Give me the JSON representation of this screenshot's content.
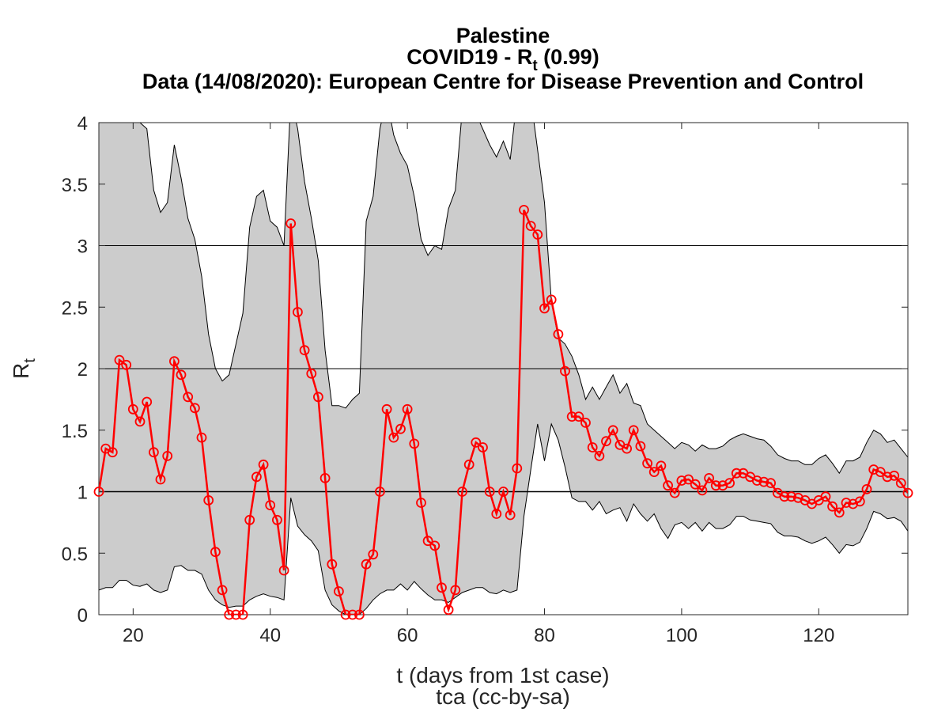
{
  "chart_data": {
    "type": "line",
    "title_lines": [
      "Palestine",
      "COVID19 - R",
      "Data (14/08/2020): European Centre for Disease Prevention and Control"
    ],
    "title_sub": "t",
    "title_suffix": " (0.99)",
    "xlabel": "t (days from 1st case)",
    "ylabel": "R",
    "ylabel_sub": "t",
    "credit": "tca (cc-by-sa)",
    "xlim": [
      15,
      133
    ],
    "ylim": [
      0,
      4
    ],
    "x_ticks": [
      20,
      40,
      60,
      80,
      100,
      120
    ],
    "y_ticks": [
      0,
      0.5,
      1,
      1.5,
      2,
      2.5,
      3,
      3.5,
      4
    ],
    "hlines": [
      1,
      2,
      3
    ],
    "x_start": 15,
    "series": [
      {
        "values": [
          1.0,
          1.35,
          1.32,
          2.07,
          2.03,
          1.67,
          1.57,
          1.73,
          1.32,
          1.1,
          1.29,
          2.06,
          1.95,
          1.77,
          1.68,
          1.44,
          0.93,
          0.51,
          0.2,
          0.0,
          0.0,
          0.0,
          0.77,
          1.12,
          1.22,
          0.89,
          0.77,
          0.36,
          3.18,
          2.46,
          2.15,
          1.96,
          1.77,
          1.11,
          0.41,
          0.19,
          0.0,
          0.0,
          0.0,
          0.41,
          0.49,
          1.0,
          1.67,
          1.44,
          1.51,
          1.67,
          1.39,
          0.91,
          0.6,
          0.56,
          0.22,
          0.04,
          0.2,
          1.0,
          1.22,
          1.4,
          1.36,
          1.0,
          0.82,
          1.0,
          0.81,
          1.19,
          3.29,
          3.16,
          3.09,
          2.49,
          2.56,
          2.28,
          1.98,
          1.61,
          1.61,
          1.56,
          1.36,
          1.29,
          1.41,
          1.5,
          1.38,
          1.35,
          1.5,
          1.37,
          1.23,
          1.16,
          1.21,
          1.05,
          0.99,
          1.09,
          1.1,
          1.06,
          1.01,
          1.11,
          1.05,
          1.05,
          1.07,
          1.15,
          1.15,
          1.12,
          1.09,
          1.08,
          1.07,
          0.99,
          0.96,
          0.96,
          0.95,
          0.93,
          0.9,
          0.93,
          0.96,
          0.88,
          0.83,
          0.91,
          0.9,
          0.92,
          1.02,
          1.18,
          1.16,
          1.12,
          1.13,
          1.07,
          0.99
        ]
      }
    ],
    "band_upper": [
      [
        15,
        4.2
      ],
      [
        17,
        4.2
      ],
      [
        18,
        4.1
      ],
      [
        21,
        4.0
      ],
      [
        22,
        3.95
      ],
      [
        23,
        3.45
      ],
      [
        24,
        3.27
      ],
      [
        25,
        3.35
      ],
      [
        26,
        3.82
      ],
      [
        27,
        3.55
      ],
      [
        28,
        3.22
      ],
      [
        29,
        3.05
      ],
      [
        30,
        2.75
      ],
      [
        31,
        2.28
      ],
      [
        32,
        2.0
      ],
      [
        33,
        1.9
      ],
      [
        34,
        1.95
      ],
      [
        35,
        2.2
      ],
      [
        36,
        2.45
      ],
      [
        37,
        3.15
      ],
      [
        38,
        3.4
      ],
      [
        39,
        3.45
      ],
      [
        40,
        3.2
      ],
      [
        41,
        3.15
      ],
      [
        42,
        3.0
      ],
      [
        43,
        4.2
      ],
      [
        44,
        3.95
      ],
      [
        45,
        3.52
      ],
      [
        46,
        3.22
      ],
      [
        47,
        2.88
      ],
      [
        48,
        2.15
      ],
      [
        49,
        1.7
      ],
      [
        50,
        1.7
      ],
      [
        51,
        1.68
      ],
      [
        52,
        1.75
      ],
      [
        53,
        1.8
      ],
      [
        54,
        3.2
      ],
      [
        55,
        3.4
      ],
      [
        56,
        3.95
      ],
      [
        57,
        4.2
      ],
      [
        58,
        3.9
      ],
      [
        59,
        3.75
      ],
      [
        60,
        3.65
      ],
      [
        61,
        3.4
      ],
      [
        62,
        3.05
      ],
      [
        63,
        2.92
      ],
      [
        64,
        3.0
      ],
      [
        65,
        2.97
      ],
      [
        66,
        3.3
      ],
      [
        67,
        3.45
      ],
      [
        68,
        4.1
      ],
      [
        69,
        4.2
      ],
      [
        72,
        3.82
      ],
      [
        73,
        3.72
      ],
      [
        74,
        3.85
      ],
      [
        75,
        3.7
      ],
      [
        76,
        4.2
      ],
      [
        78,
        4.2
      ],
      [
        80,
        3.35
      ],
      [
        81,
        2.55
      ],
      [
        82,
        2.25
      ],
      [
        83,
        2.2
      ],
      [
        84,
        2.1
      ],
      [
        85,
        1.95
      ],
      [
        86,
        1.75
      ],
      [
        87,
        1.85
      ],
      [
        88,
        1.75
      ],
      [
        89,
        1.85
      ],
      [
        90,
        1.95
      ],
      [
        91,
        1.8
      ],
      [
        92,
        1.88
      ],
      [
        93,
        1.72
      ],
      [
        94,
        1.7
      ],
      [
        95,
        1.55
      ],
      [
        96,
        1.5
      ],
      [
        97,
        1.45
      ],
      [
        98,
        1.4
      ],
      [
        99,
        1.35
      ],
      [
        100,
        1.4
      ],
      [
        101,
        1.38
      ],
      [
        102,
        1.33
      ],
      [
        103,
        1.38
      ],
      [
        104,
        1.35
      ],
      [
        105,
        1.35
      ],
      [
        106,
        1.37
      ],
      [
        107,
        1.42
      ],
      [
        108,
        1.45
      ],
      [
        109,
        1.47
      ],
      [
        110,
        1.45
      ],
      [
        111,
        1.43
      ],
      [
        112,
        1.42
      ],
      [
        113,
        1.37
      ],
      [
        114,
        1.3
      ],
      [
        115,
        1.27
      ],
      [
        116,
        1.25
      ],
      [
        117,
        1.25
      ],
      [
        118,
        1.22
      ],
      [
        119,
        1.22
      ],
      [
        120,
        1.27
      ],
      [
        121,
        1.3
      ],
      [
        122,
        1.23
      ],
      [
        123,
        1.15
      ],
      [
        124,
        1.25
      ],
      [
        125,
        1.25
      ],
      [
        126,
        1.28
      ],
      [
        127,
        1.4
      ],
      [
        128,
        1.5
      ],
      [
        129,
        1.47
      ],
      [
        130,
        1.4
      ],
      [
        131,
        1.42
      ],
      [
        132,
        1.35
      ],
      [
        133,
        1.28
      ]
    ],
    "band_lower": [
      [
        15,
        0.2
      ],
      [
        16,
        0.22
      ],
      [
        17,
        0.22
      ],
      [
        18,
        0.28
      ],
      [
        19,
        0.28
      ],
      [
        20,
        0.24
      ],
      [
        21,
        0.23
      ],
      [
        22,
        0.25
      ],
      [
        23,
        0.2
      ],
      [
        24,
        0.18
      ],
      [
        25,
        0.2
      ],
      [
        26,
        0.39
      ],
      [
        27,
        0.4
      ],
      [
        28,
        0.36
      ],
      [
        29,
        0.36
      ],
      [
        30,
        0.33
      ],
      [
        31,
        0.2
      ],
      [
        32,
        0.12
      ],
      [
        33,
        0.08
      ],
      [
        34,
        0.06
      ],
      [
        35,
        0.07
      ],
      [
        36,
        0.07
      ],
      [
        37,
        0.12
      ],
      [
        38,
        0.15
      ],
      [
        39,
        0.17
      ],
      [
        40,
        0.15
      ],
      [
        41,
        0.14
      ],
      [
        42,
        0.12
      ],
      [
        43,
        0.95
      ],
      [
        44,
        0.72
      ],
      [
        45,
        0.65
      ],
      [
        46,
        0.6
      ],
      [
        47,
        0.52
      ],
      [
        48,
        0.2
      ],
      [
        49,
        0.08
      ],
      [
        50,
        0.03
      ],
      [
        51,
        0.0
      ],
      [
        53,
        0.0
      ],
      [
        54,
        0.05
      ],
      [
        55,
        0.12
      ],
      [
        56,
        0.17
      ],
      [
        57,
        0.2
      ],
      [
        58,
        0.2
      ],
      [
        59,
        0.25
      ],
      [
        60,
        0.2
      ],
      [
        61,
        0.27
      ],
      [
        62,
        0.21
      ],
      [
        63,
        0.16
      ],
      [
        64,
        0.12
      ],
      [
        65,
        0.12
      ],
      [
        66,
        0.1
      ],
      [
        67,
        0.14
      ],
      [
        68,
        0.18
      ],
      [
        69,
        0.2
      ],
      [
        70,
        0.22
      ],
      [
        71,
        0.22
      ],
      [
        72,
        0.18
      ],
      [
        73,
        0.17
      ],
      [
        74,
        0.2
      ],
      [
        75,
        0.18
      ],
      [
        76,
        0.2
      ],
      [
        77,
        0.8
      ],
      [
        78,
        1.18
      ],
      [
        79,
        1.55
      ],
      [
        80,
        1.25
      ],
      [
        81,
        1.55
      ],
      [
        82,
        1.42
      ],
      [
        83,
        1.2
      ],
      [
        84,
        0.95
      ],
      [
        85,
        0.92
      ],
      [
        86,
        0.92
      ],
      [
        87,
        0.85
      ],
      [
        88,
        0.92
      ],
      [
        89,
        0.82
      ],
      [
        90,
        0.85
      ],
      [
        91,
        0.87
      ],
      [
        92,
        0.76
      ],
      [
        93,
        0.9
      ],
      [
        94,
        0.82
      ],
      [
        95,
        0.76
      ],
      [
        96,
        0.82
      ],
      [
        97,
        0.7
      ],
      [
        98,
        0.62
      ],
      [
        99,
        0.73
      ],
      [
        100,
        0.75
      ],
      [
        101,
        0.7
      ],
      [
        102,
        0.75
      ],
      [
        103,
        0.68
      ],
      [
        104,
        0.75
      ],
      [
        105,
        0.7
      ],
      [
        106,
        0.7
      ],
      [
        107,
        0.73
      ],
      [
        108,
        0.8
      ],
      [
        109,
        0.8
      ],
      [
        110,
        0.77
      ],
      [
        111,
        0.76
      ],
      [
        112,
        0.75
      ],
      [
        113,
        0.74
      ],
      [
        114,
        0.67
      ],
      [
        115,
        0.64
      ],
      [
        116,
        0.64
      ],
      [
        117,
        0.63
      ],
      [
        118,
        0.6
      ],
      [
        119,
        0.58
      ],
      [
        120,
        0.6
      ],
      [
        121,
        0.63
      ],
      [
        122,
        0.57
      ],
      [
        123,
        0.5
      ],
      [
        124,
        0.57
      ],
      [
        125,
        0.56
      ],
      [
        126,
        0.59
      ],
      [
        127,
        0.7
      ],
      [
        128,
        0.84
      ],
      [
        129,
        0.82
      ],
      [
        130,
        0.78
      ],
      [
        131,
        0.79
      ],
      [
        132,
        0.76
      ],
      [
        133,
        0.68
      ]
    ],
    "colors": {
      "series": "#ff0000",
      "band_fill": "#cccccc",
      "band_stroke": "#000000",
      "grid": "#000000"
    },
    "grid": false
  }
}
